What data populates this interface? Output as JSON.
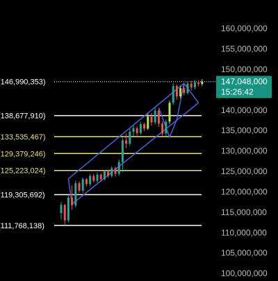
{
  "chart_data": {
    "type": "candlestick",
    "ylim": [
      99000000,
      167000000
    ],
    "y_ticks": [
      {
        "value": 160000000,
        "label": "160,000,000"
      },
      {
        "value": 155000000,
        "label": "155,000,000"
      },
      {
        "value": 150000000,
        "label": "150,000,000"
      },
      {
        "value": 145000000,
        "label": "145,000,000"
      },
      {
        "value": 140000000,
        "label": "140,000,000"
      },
      {
        "value": 135000000,
        "label": "135,000,000"
      },
      {
        "value": 130000000,
        "label": "130,000,000"
      },
      {
        "value": 125000000,
        "label": "125,000,000"
      },
      {
        "value": 120000000,
        "label": "120,000,000"
      },
      {
        "value": 115000000,
        "label": "115,000,000"
      },
      {
        "value": 110000000,
        "label": "110,000,000"
      },
      {
        "value": 105000000,
        "label": "105,000,000"
      },
      {
        "value": 100000000,
        "label": "100,000,000"
      }
    ],
    "levels": [
      {
        "value": 146990353,
        "label": "146,990,353)",
        "color": "#ffffff",
        "style": "dotted"
      },
      {
        "value": 138677910,
        "label": "138,677,910)",
        "color": "#ffffff",
        "style": "solid"
      },
      {
        "value": 133535467,
        "label": "133,535,467)",
        "color": "#e6e27a",
        "style": "solid"
      },
      {
        "value": 129379246,
        "label": "129,379,246)",
        "color": "#e6e27a",
        "style": "solid"
      },
      {
        "value": 125223024,
        "label": "125,223,024)",
        "color": "#e6e27a",
        "style": "solid"
      },
      {
        "value": 119305692,
        "label": "119,305,692)",
        "color": "#ffffff",
        "style": "solid"
      },
      {
        "value": 111768138,
        "label": "111,768,138)",
        "color": "#ffffff",
        "style": "solid"
      }
    ],
    "current_price": {
      "value": 147048000,
      "label": "147,048,000",
      "countdown": "15:26:42",
      "color": "#15957f"
    },
    "candle_colors": {
      "up": "#26a69a",
      "down": "#ef5350",
      "up_alt": "#b7e34d"
    },
    "candles": [
      [
        114800000,
        117500000,
        113200000,
        116800000
      ],
      [
        116800000,
        117000000,
        111800000,
        113000000
      ],
      [
        113000000,
        119200000,
        112500000,
        118600000
      ],
      [
        118600000,
        121600000,
        115600000,
        116700000
      ],
      [
        116700000,
        122800000,
        116200000,
        122100000
      ],
      [
        122100000,
        122600000,
        119800000,
        120300000
      ],
      [
        120300000,
        123500000,
        119700000,
        123100000
      ],
      [
        123100000,
        123400000,
        121300000,
        121900000
      ],
      [
        121900000,
        124300000,
        121400000,
        123900000
      ],
      [
        123900000,
        124400000,
        122300000,
        122700000
      ],
      [
        122700000,
        124800000,
        122200000,
        124200000
      ],
      [
        124200000,
        124600000,
        122400000,
        123100000
      ],
      [
        123100000,
        125400000,
        122800000,
        125000000
      ],
      [
        125000000,
        125400000,
        123400000,
        123900000
      ],
      [
        123900000,
        126300000,
        123500000,
        125800000
      ],
      [
        125800000,
        126200000,
        123800000,
        124400000
      ],
      [
        124400000,
        127900000,
        123900000,
        127300000
      ],
      [
        127300000,
        133200000,
        124800000,
        132600000
      ],
      [
        132600000,
        134300000,
        130700000,
        131800000
      ],
      [
        131800000,
        135400000,
        131300000,
        134700000
      ],
      [
        134700000,
        136400000,
        133600000,
        135600000
      ],
      [
        135600000,
        136000000,
        133800000,
        134400000
      ],
      [
        134400000,
        137200000,
        134000000,
        136600000
      ],
      [
        136600000,
        137000000,
        134900000,
        135500000
      ],
      [
        135500000,
        139200000,
        135200000,
        138400000
      ],
      [
        138400000,
        139300000,
        136200000,
        137000000
      ],
      [
        137000000,
        140600000,
        136500000,
        139900000
      ],
      [
        139900000,
        140300000,
        135900000,
        136700000
      ],
      [
        136700000,
        137300000,
        133800000,
        134300000
      ],
      [
        134300000,
        137700000,
        133700000,
        137200000
      ],
      [
        137200000,
        142300000,
        136600000,
        141800000
      ],
      [
        141800000,
        146600000,
        141300000,
        145900000
      ],
      [
        145900000,
        146300000,
        142600000,
        143400000
      ],
      [
        143400000,
        146000000,
        142900000,
        145400000
      ],
      [
        145400000,
        146300000,
        143600000,
        144200000
      ],
      [
        144200000,
        147000000,
        143800000,
        146500000
      ],
      [
        146500000,
        147200000,
        144800000,
        145600000
      ],
      [
        145600000,
        147400000,
        145100000,
        146800000
      ],
      [
        146800000,
        147300000,
        145800000,
        146400000
      ],
      [
        146400000,
        147600000,
        146000000,
        147048000
      ]
    ],
    "channel_color": "#4a5fe0",
    "channel": {
      "lower": [
        [
          3,
          117000000
        ],
        [
          38,
          141800000
        ]
      ],
      "upper": [
        [
          2,
          123200000
        ],
        [
          34,
          146600000
        ]
      ],
      "left": [
        [
          2,
          123200000
        ],
        [
          3,
          117000000
        ]
      ],
      "right": [
        [
          34,
          146600000
        ],
        [
          38,
          141800000
        ]
      ]
    },
    "channel_inner": [
      [
        27,
        140600000
      ],
      [
        30,
        133400000
      ],
      [
        32,
        137700000
      ],
      [
        34,
        146600000
      ]
    ]
  }
}
